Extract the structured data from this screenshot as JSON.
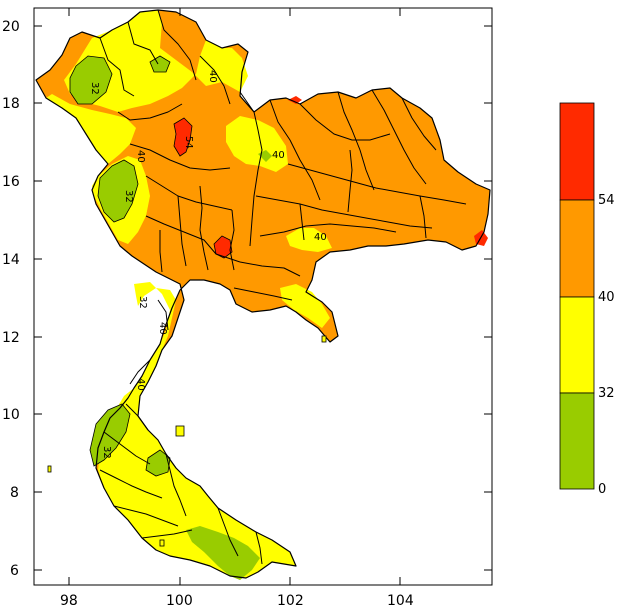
{
  "map": {
    "x_ticks": [
      "98",
      "100",
      "102",
      "104"
    ],
    "y_ticks": [
      "20",
      "18",
      "16",
      "14",
      "12",
      "10",
      "8",
      "6"
    ]
  },
  "legend": {
    "classes": [
      {
        "range": "54+",
        "color": "#ff2a00"
      },
      {
        "range": "40-54",
        "color": "#ff9900"
      },
      {
        "range": "32-40",
        "color": "#ffff00"
      },
      {
        "range": "0-32",
        "color": "#99cc00"
      }
    ],
    "tick_labels": [
      "54",
      "40",
      "32",
      "0"
    ]
  },
  "contour_labels": [
    "40",
    "40",
    "32",
    "32",
    "40",
    "40",
    "32",
    "40",
    "40",
    "32",
    "54"
  ]
}
